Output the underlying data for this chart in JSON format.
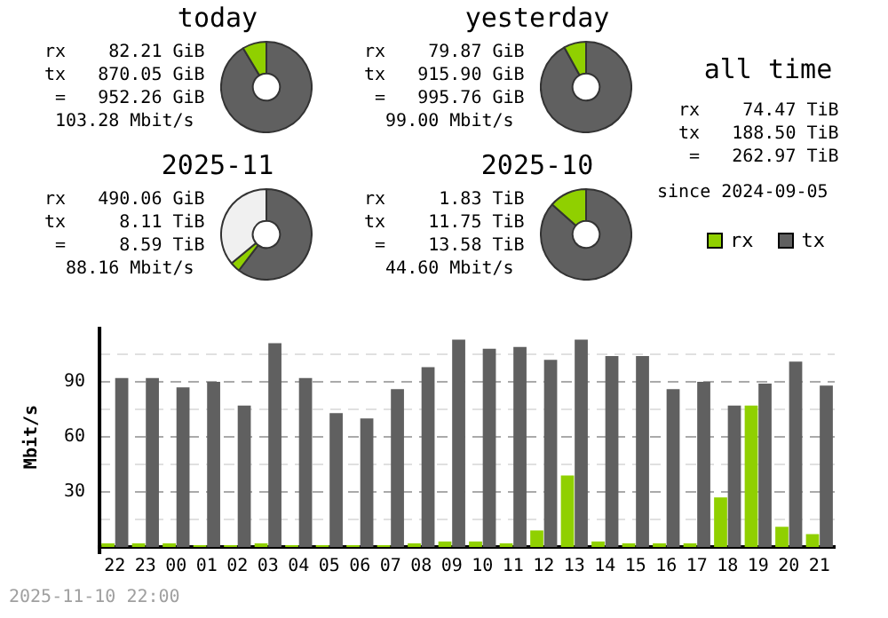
{
  "chart_data": [
    {
      "type": "donut",
      "title": "today",
      "categories": [
        null,
        null
      ],
      "values": [
        91.4,
        8.6
      ],
      "colors": [
        "#606060",
        "#90d000"
      ],
      "annotations": [
        "rx    82.21 GiB",
        "tx   870.05 GiB",
        " =   952.26 GiB",
        " 103.28 Mbit/s"
      ]
    },
    {
      "type": "donut",
      "title": "yesterday",
      "categories": [
        null,
        null
      ],
      "values": [
        92.0,
        8.0
      ],
      "colors": [
        "#606060",
        "#90d000"
      ],
      "annotations": [
        "rx    79.87 GiB",
        "tx   915.90 GiB",
        " =   995.76 GiB",
        "  99.00 Mbit/s"
      ]
    },
    {
      "type": "donut",
      "title": "2025-11",
      "categories": [
        null,
        null,
        null
      ],
      "values": [
        60.4,
        3.6,
        36.0
      ],
      "colors": [
        "#606060",
        "#90d000",
        "#f0f0f0"
      ],
      "annotations": [
        "rx   490.06 GiB",
        "tx     8.11 TiB",
        " =     8.59 TiB",
        "  88.16 Mbit/s"
      ]
    },
    {
      "type": "donut",
      "title": "2025-10",
      "categories": [
        null,
        null
      ],
      "values": [
        86.5,
        13.5
      ],
      "colors": [
        "#606060",
        "#90d000"
      ],
      "annotations": [
        "rx     1.83 TiB",
        "tx    11.75 TiB",
        " =    13.58 TiB",
        "  44.60 Mbit/s"
      ]
    },
    {
      "type": "other",
      "title": "all time",
      "annotations": [
        "rx    74.47 TiB",
        "tx   188.50 TiB",
        " =   262.97 TiB",
        "since 2024-09-05"
      ]
    },
    {
      "type": "bar",
      "ylabel": "Mbit/s",
      "categories": [
        "22",
        "23",
        "00",
        "01",
        "02",
        "03",
        "04",
        "05",
        "06",
        "07",
        "08",
        "09",
        "10",
        "11",
        "12",
        "13",
        "14",
        "15",
        "16",
        "17",
        "18",
        "19",
        "20",
        "21"
      ],
      "series": [
        {
          "name": "rx",
          "color": "#90d000",
          "values": [
            2,
            2,
            2,
            1,
            1,
            2,
            1,
            1,
            1,
            1,
            2,
            3,
            3,
            2,
            9,
            39,
            3,
            2,
            2,
            2,
            27,
            77,
            11,
            7
          ]
        },
        {
          "name": "tx",
          "color": "#606060",
          "values": [
            92,
            92,
            87,
            90,
            77,
            111,
            92,
            73,
            70,
            86,
            98,
            113,
            108,
            109,
            102,
            113,
            104,
            104,
            86,
            90,
            77,
            89,
            101,
            88
          ]
        }
      ],
      "ylim": [
        0,
        120
      ],
      "yticks": [
        {
          "value": 15,
          "label": null
        },
        30,
        {
          "value": 45,
          "label": null
        },
        60,
        {
          "value": 75,
          "label": null
        },
        90,
        {
          "value": 105,
          "label": null
        }
      ],
      "grid": "y",
      "legend": "top right",
      "annotations": [
        "2025-11-10 22:00"
      ]
    }
  ]
}
